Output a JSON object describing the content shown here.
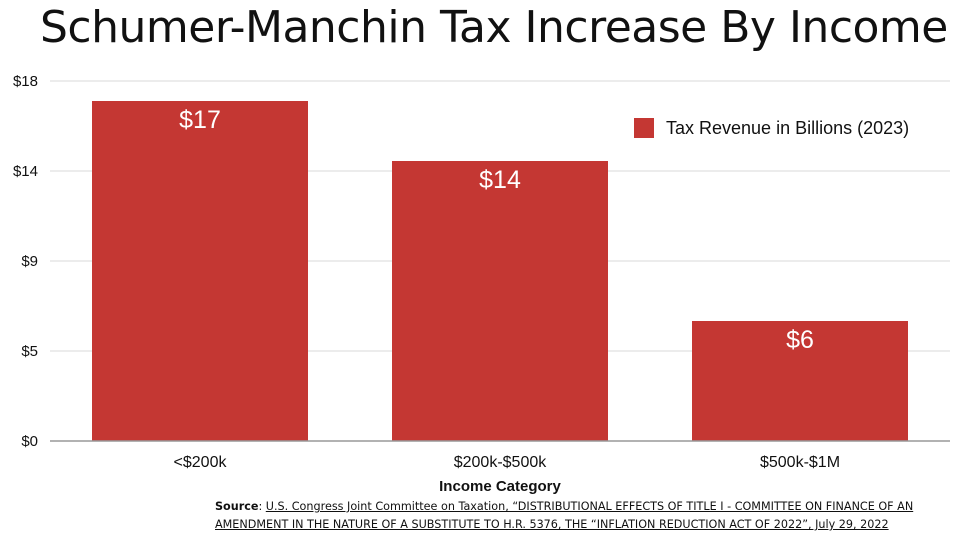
{
  "chart_data": {
    "type": "bar",
    "title": "Schumer-Manchin Tax Increase By Income",
    "xlabel": "Income Category",
    "ylabel": "",
    "categories": [
      "<$200k",
      "$200k-$500k",
      "$500k-$1M"
    ],
    "series": [
      {
        "name": "Tax Revenue in Billions (2023)",
        "values": [
          17,
          14,
          6
        ],
        "labels": [
          "$17",
          "$14",
          "$6"
        ],
        "color": "#c43733"
      }
    ],
    "ylim": [
      0,
      18
    ],
    "yticks": [
      0,
      4.5,
      9,
      13.5,
      18
    ],
    "ytick_labels": [
      "$0",
      "$5",
      "$9",
      "$14",
      "$18"
    ],
    "grid": true,
    "legend_position": "top-right"
  },
  "source": {
    "label": "Source",
    "text": "U.S. Congress Joint Committee on Taxation, “DISTRIBUTIONAL EFFECTS OF TITLE I - COMMITTEE ON FINANCE OF AN AMENDMENT IN THE NATURE OF A SUBSTITUTE TO H.R. 5376, THE “INFLATION REDUCTION ACT OF 2022”, July 29, 2022"
  }
}
